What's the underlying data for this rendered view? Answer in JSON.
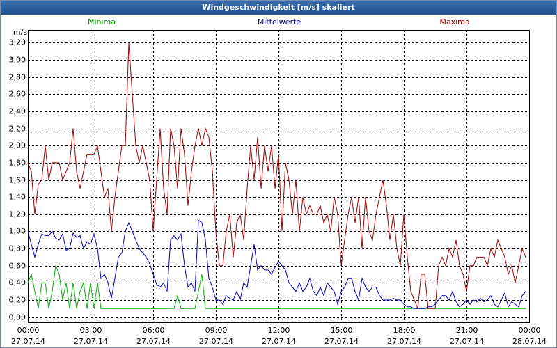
{
  "chart_data": {
    "type": "line",
    "title": "Windgeschwindigkeit [m/s] skaliert",
    "y_label": "m/s",
    "grid": true,
    "xlim": [
      0,
      1440
    ],
    "xticks": [
      {
        "value": 0,
        "label": "00:00",
        "date": "27.07.14"
      },
      {
        "value": 180,
        "label": "03:00",
        "date": "27.07.14"
      },
      {
        "value": 360,
        "label": "06:00",
        "date": "27.07.14"
      },
      {
        "value": 540,
        "label": "09:00",
        "date": "27.07.14"
      },
      {
        "value": 720,
        "label": "12:00",
        "date": "27.07.14"
      },
      {
        "value": 900,
        "label": "15:00",
        "date": "27.07.14"
      },
      {
        "value": 1080,
        "label": "18:00",
        "date": "27.07.14"
      },
      {
        "value": 1260,
        "label": "21:00",
        "date": "27.07.14"
      },
      {
        "value": 1440,
        "label": "00:00",
        "date": "28.07.14"
      }
    ],
    "ylim": [
      -0.06,
      3.35
    ],
    "yticks": [
      {
        "value": 0,
        "label": "0,00"
      },
      {
        "value": 0.2,
        "label": "0,20"
      },
      {
        "value": 0.4,
        "label": "0,40"
      },
      {
        "value": 0.6,
        "label": "0,60"
      },
      {
        "value": 0.8,
        "label": "0,80"
      },
      {
        "value": 1.0,
        "label": "1,00"
      },
      {
        "value": 1.2,
        "label": "1,20"
      },
      {
        "value": 1.4,
        "label": "1,40"
      },
      {
        "value": 1.6,
        "label": "1,60"
      },
      {
        "value": 1.8,
        "label": "1,80"
      },
      {
        "value": 2.0,
        "label": "2,00"
      },
      {
        "value": 2.2,
        "label": "2,20"
      },
      {
        "value": 2.4,
        "label": "2,40"
      },
      {
        "value": 2.6,
        "label": "2,60"
      },
      {
        "value": 2.8,
        "label": "2,80"
      },
      {
        "value": 3.0,
        "label": "3,00"
      },
      {
        "value": 3.2,
        "label": "3,20"
      }
    ],
    "x": [
      0,
      10,
      20,
      30,
      40,
      50,
      60,
      70,
      80,
      90,
      100,
      110,
      120,
      130,
      140,
      150,
      160,
      170,
      180,
      190,
      200,
      210,
      220,
      230,
      240,
      250,
      260,
      270,
      280,
      290,
      300,
      310,
      320,
      330,
      340,
      350,
      360,
      370,
      380,
      390,
      400,
      410,
      420,
      430,
      440,
      450,
      460,
      470,
      480,
      490,
      500,
      510,
      520,
      530,
      540,
      550,
      560,
      570,
      580,
      590,
      600,
      610,
      620,
      630,
      640,
      650,
      660,
      670,
      680,
      690,
      700,
      710,
      720,
      730,
      740,
      750,
      760,
      770,
      780,
      790,
      800,
      810,
      820,
      830,
      840,
      850,
      860,
      870,
      880,
      890,
      900,
      910,
      920,
      930,
      940,
      950,
      960,
      970,
      980,
      990,
      1000,
      1010,
      1020,
      1030,
      1040,
      1050,
      1060,
      1070,
      1080,
      1090,
      1100,
      1110,
      1120,
      1130,
      1140,
      1150,
      1160,
      1170,
      1180,
      1190,
      1200,
      1210,
      1220,
      1230,
      1240,
      1250,
      1260,
      1270,
      1280,
      1290,
      1300,
      1310,
      1320,
      1330,
      1340,
      1350,
      1360,
      1370,
      1380,
      1390,
      1400,
      1410,
      1420,
      1430
    ],
    "series": [
      {
        "name": "Minima",
        "color": "#00b000",
        "label_color": "#00a000",
        "values": [
          0.4,
          0.5,
          0.3,
          0.1,
          0.4,
          0.4,
          0.1,
          0.3,
          0.6,
          0.5,
          0.2,
          0.4,
          0.1,
          0.4,
          0.1,
          0.3,
          0.4,
          0.1,
          0.4,
          0.1,
          0.4,
          0.1,
          0.1,
          0.1,
          0.1,
          0.1,
          0.1,
          0.1,
          0.1,
          0.1,
          0.1,
          0.1,
          0.1,
          0.1,
          0.1,
          0.1,
          0.1,
          0.1,
          0.1,
          0.1,
          0.1,
          0.1,
          0.1,
          0.25,
          0.1,
          0.1,
          0.1,
          0.1,
          0.1,
          0.3,
          0.5,
          0.1,
          0.1,
          0.1,
          0.1,
          0.1,
          0.1,
          0.1,
          0.1,
          0.1,
          0.1,
          0.1,
          0.1,
          0.1,
          0.1,
          0.1,
          0.1,
          0.1,
          0.1,
          0.1,
          0.1,
          0.1,
          0.1,
          0.1,
          0.1,
          0.1,
          0.1,
          0.1,
          0.1,
          0.1,
          0.1,
          0.1,
          0.1,
          0.1,
          0.1,
          0.1,
          0.1,
          0.1,
          0.1,
          0.1,
          0.1,
          0.1,
          0.1,
          0.1,
          0.1,
          0.1,
          0.1,
          0.1,
          0.1,
          0.1,
          0.1,
          0.1,
          0.1,
          0.1,
          0.1,
          0.1,
          0.1,
          0.1,
          0.1,
          0.1,
          0.1,
          0.1,
          0.1,
          0.1,
          0.1,
          0.1,
          0.1,
          0.1,
          0.1,
          0.1,
          0.1,
          0.1,
          0.1,
          0.1,
          0.1,
          0.1,
          0.1,
          0.1,
          0.1,
          0.1,
          0.1,
          0.1,
          0.1,
          0.1,
          0.1,
          0.1,
          0.1,
          0.1,
          0.1,
          0.1,
          0.1,
          0.1,
          0.1,
          0.1
        ]
      },
      {
        "name": "Mittelwerte",
        "color": "#0000c0",
        "label_color": "#000080",
        "values": [
          1.0,
          0.85,
          0.7,
          0.85,
          0.97,
          0.95,
          0.95,
          1.0,
          0.92,
          0.9,
          0.97,
          0.78,
          0.8,
          0.98,
          0.93,
          0.95,
          0.8,
          0.88,
          0.85,
          0.97,
          0.8,
          0.45,
          0.5,
          0.4,
          0.22,
          0.45,
          0.7,
          0.75,
          1.0,
          1.1,
          1.0,
          0.9,
          0.8,
          0.75,
          0.7,
          0.62,
          0.5,
          0.38,
          0.35,
          0.4,
          0.3,
          0.9,
          0.95,
          0.9,
          0.97,
          0.6,
          0.35,
          0.4,
          0.3,
          1.13,
          1.1,
          0.9,
          0.45,
          0.35,
          0.2,
          0.2,
          0.15,
          0.25,
          0.22,
          0.2,
          0.3,
          0.2,
          0.4,
          0.35,
          0.6,
          0.85,
          0.55,
          0.6,
          0.55,
          0.55,
          0.5,
          0.58,
          0.65,
          0.6,
          0.55,
          0.4,
          0.35,
          0.3,
          0.4,
          0.3,
          0.35,
          0.45,
          0.3,
          0.25,
          0.35,
          0.25,
          0.4,
          0.35,
          0.3,
          0.15,
          0.3,
          0.35,
          0.45,
          0.45,
          0.3,
          0.2,
          0.45,
          0.35,
          0.3,
          0.35,
          0.35,
          0.25,
          0.2,
          0.2,
          0.2,
          0.22,
          0.2,
          0.2,
          0.15,
          0.12,
          0.12,
          0.1,
          0.1,
          0.1,
          0.1,
          0.12,
          0.12,
          0.15,
          0.2,
          0.25,
          0.25,
          0.2,
          0.3,
          0.18,
          0.12,
          0.15,
          0.2,
          0.15,
          0.2,
          0.18,
          0.22,
          0.18,
          0.2,
          0.25,
          0.15,
          0.12,
          0.2,
          0.28,
          0.12,
          0.18,
          0.15,
          0.12,
          0.25,
          0.3
        ]
      },
      {
        "name": "Maxima",
        "color": "#a00000",
        "label_color": "#a00000",
        "values": [
          1.8,
          1.7,
          1.2,
          1.55,
          1.6,
          2.0,
          1.6,
          1.8,
          1.8,
          1.8,
          1.6,
          1.7,
          1.8,
          2.2,
          1.7,
          1.5,
          1.7,
          1.9,
          1.9,
          1.9,
          2.0,
          1.7,
          1.4,
          1.5,
          1.0,
          1.4,
          1.7,
          2.0,
          2.0,
          3.2,
          2.6,
          2.0,
          1.8,
          2.0,
          1.8,
          1.6,
          1.0,
          1.6,
          2.2,
          1.5,
          1.2,
          2.2,
          2.0,
          1.5,
          2.2,
          1.9,
          1.3,
          1.7,
          2.0,
          2.2,
          2.0,
          2.2,
          2.1,
          1.7,
          1.0,
          0.6,
          0.6,
          1.0,
          1.2,
          0.7,
          1.1,
          1.2,
          0.9,
          1.5,
          2.0,
          1.6,
          2.1,
          1.5,
          2.0,
          1.7,
          2.0,
          1.5,
          1.9,
          1.0,
          1.8,
          1.6,
          1.2,
          1.6,
          1.0,
          1.4,
          1.2,
          1.3,
          1.2,
          1.2,
          1.3,
          1.1,
          1.2,
          1.0,
          1.4,
          1.2,
          0.6,
          0.9,
          1.2,
          1.4,
          1.1,
          1.4,
          0.8,
          1.4,
          1.0,
          0.9,
          1.2,
          1.4,
          1.6,
          1.3,
          0.9,
          1.2,
          0.8,
          0.6,
          1.2,
          0.7,
          0.3,
          0.2,
          0.1,
          0.5,
          0.5,
          0.1,
          0.1,
          0.1,
          0.6,
          0.7,
          0.6,
          0.8,
          0.7,
          0.9,
          0.6,
          0.5,
          0.3,
          0.6,
          0.6,
          0.7,
          0.7,
          0.7,
          0.6,
          0.8,
          0.7,
          0.9,
          0.8,
          0.7,
          0.5,
          0.6,
          0.4,
          0.6,
          0.8,
          0.7
        ]
      }
    ]
  }
}
